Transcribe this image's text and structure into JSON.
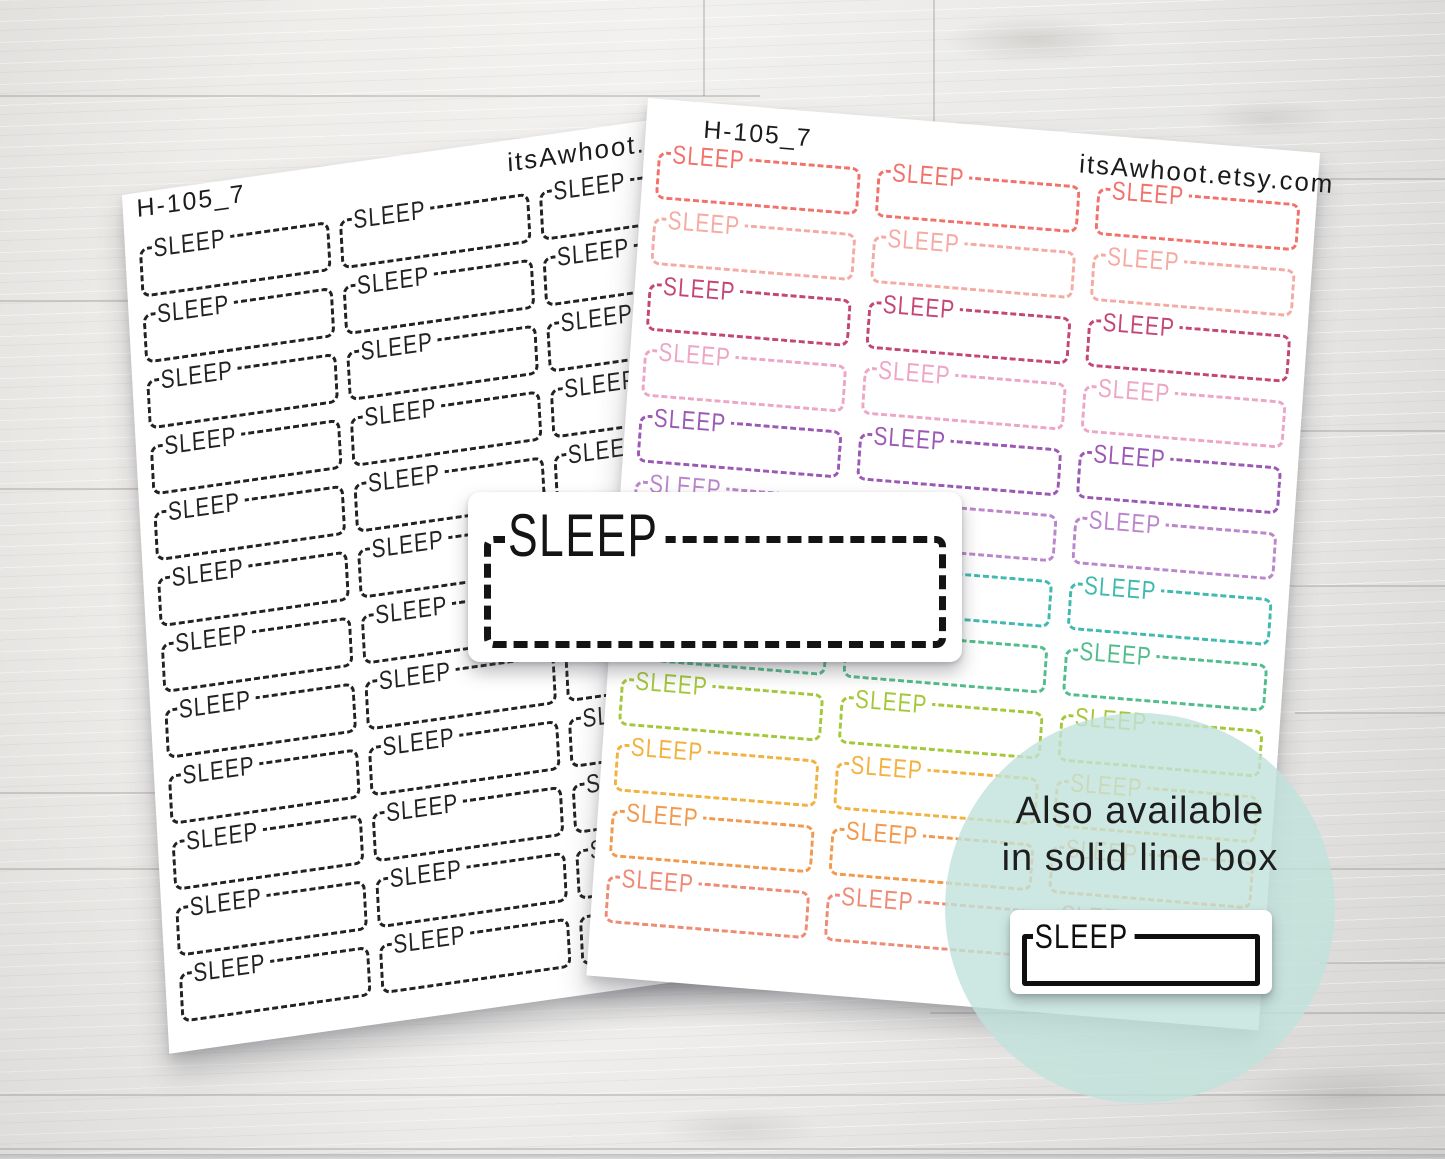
{
  "product": {
    "sticker_word": "SLEEP"
  },
  "left_sheet": {
    "code": "H-105_7",
    "watermark": "itsAwhoot.etsy.com",
    "rows": 12,
    "columns": 3,
    "row_colors": [
      "#222222",
      "#222222",
      "#222222",
      "#222222",
      "#222222",
      "#222222",
      "#222222",
      "#222222",
      "#222222",
      "#222222",
      "#222222",
      "#222222"
    ]
  },
  "right_sheet": {
    "code": "H-105_7",
    "watermark": "itsAwhoot.etsy.com",
    "rows": 12,
    "columns": 3,
    "row_colors": [
      "#f2716a",
      "#f5aba3",
      "#c34677",
      "#eda6c6",
      "#9b59b5",
      "#bb86cb",
      "#3fbab0",
      "#52bd8c",
      "#a5c83b",
      "#f2b23f",
      "#f2994c",
      "#ef8a75"
    ]
  },
  "detail_sticker": {
    "label": "SLEEP",
    "line_style": "dashed"
  },
  "solid_sticker": {
    "label": "SLEEP",
    "line_style": "solid"
  },
  "note_circle": {
    "line1": "Also available",
    "line2": "in solid line box",
    "fill": "rgba(193,226,219,0.8)"
  },
  "colors": {
    "paper": "#ffffff",
    "ink": "#1e1e1e"
  }
}
